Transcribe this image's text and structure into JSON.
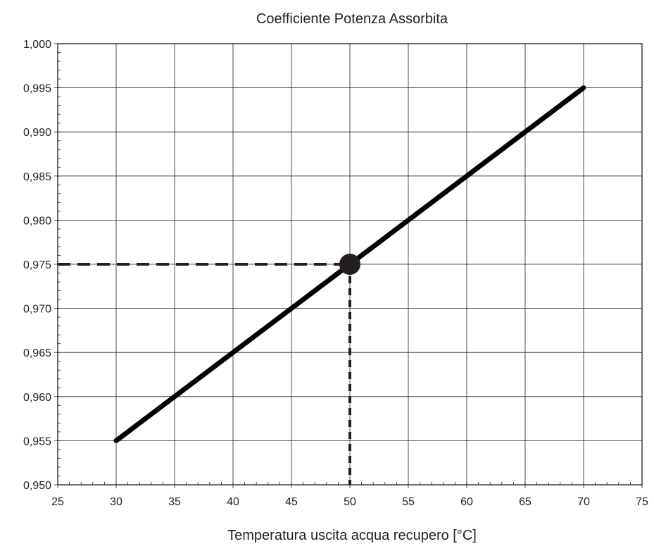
{
  "chart_data": {
    "type": "line",
    "title": "Coefficiente Potenza Assorbita",
    "xlabel": "Temperatura uscita acqua recupero [°C]",
    "ylabel": "",
    "xlim": [
      25,
      75
    ],
    "ylim": [
      0.95,
      1.0
    ],
    "x_ticks": [
      25,
      30,
      35,
      40,
      45,
      50,
      55,
      60,
      65,
      70,
      75
    ],
    "x_tick_labels": [
      "25",
      "30",
      "35",
      "40",
      "45",
      "50",
      "55",
      "60",
      "65",
      "70",
      "75"
    ],
    "y_ticks": [
      0.95,
      0.955,
      0.96,
      0.965,
      0.97,
      0.975,
      0.98,
      0.985,
      0.99,
      0.995,
      1.0
    ],
    "y_tick_labels": [
      "0,950",
      "0,955",
      "0,960",
      "0,965",
      "0,970",
      "0,975",
      "0,980",
      "0,985",
      "0,990",
      "0,995",
      "1,000"
    ],
    "grid": true,
    "series": [
      {
        "x": [
          30,
          70
        ],
        "values": [
          0.955,
          0.995
        ]
      }
    ],
    "annotations": {
      "marker_point": {
        "x": 50,
        "y": 0.975
      },
      "guide_lines": "dashed"
    },
    "colors": {
      "line": "#000000",
      "marker": "#231f20",
      "grid": "#231f20",
      "text": "#231f20"
    }
  }
}
